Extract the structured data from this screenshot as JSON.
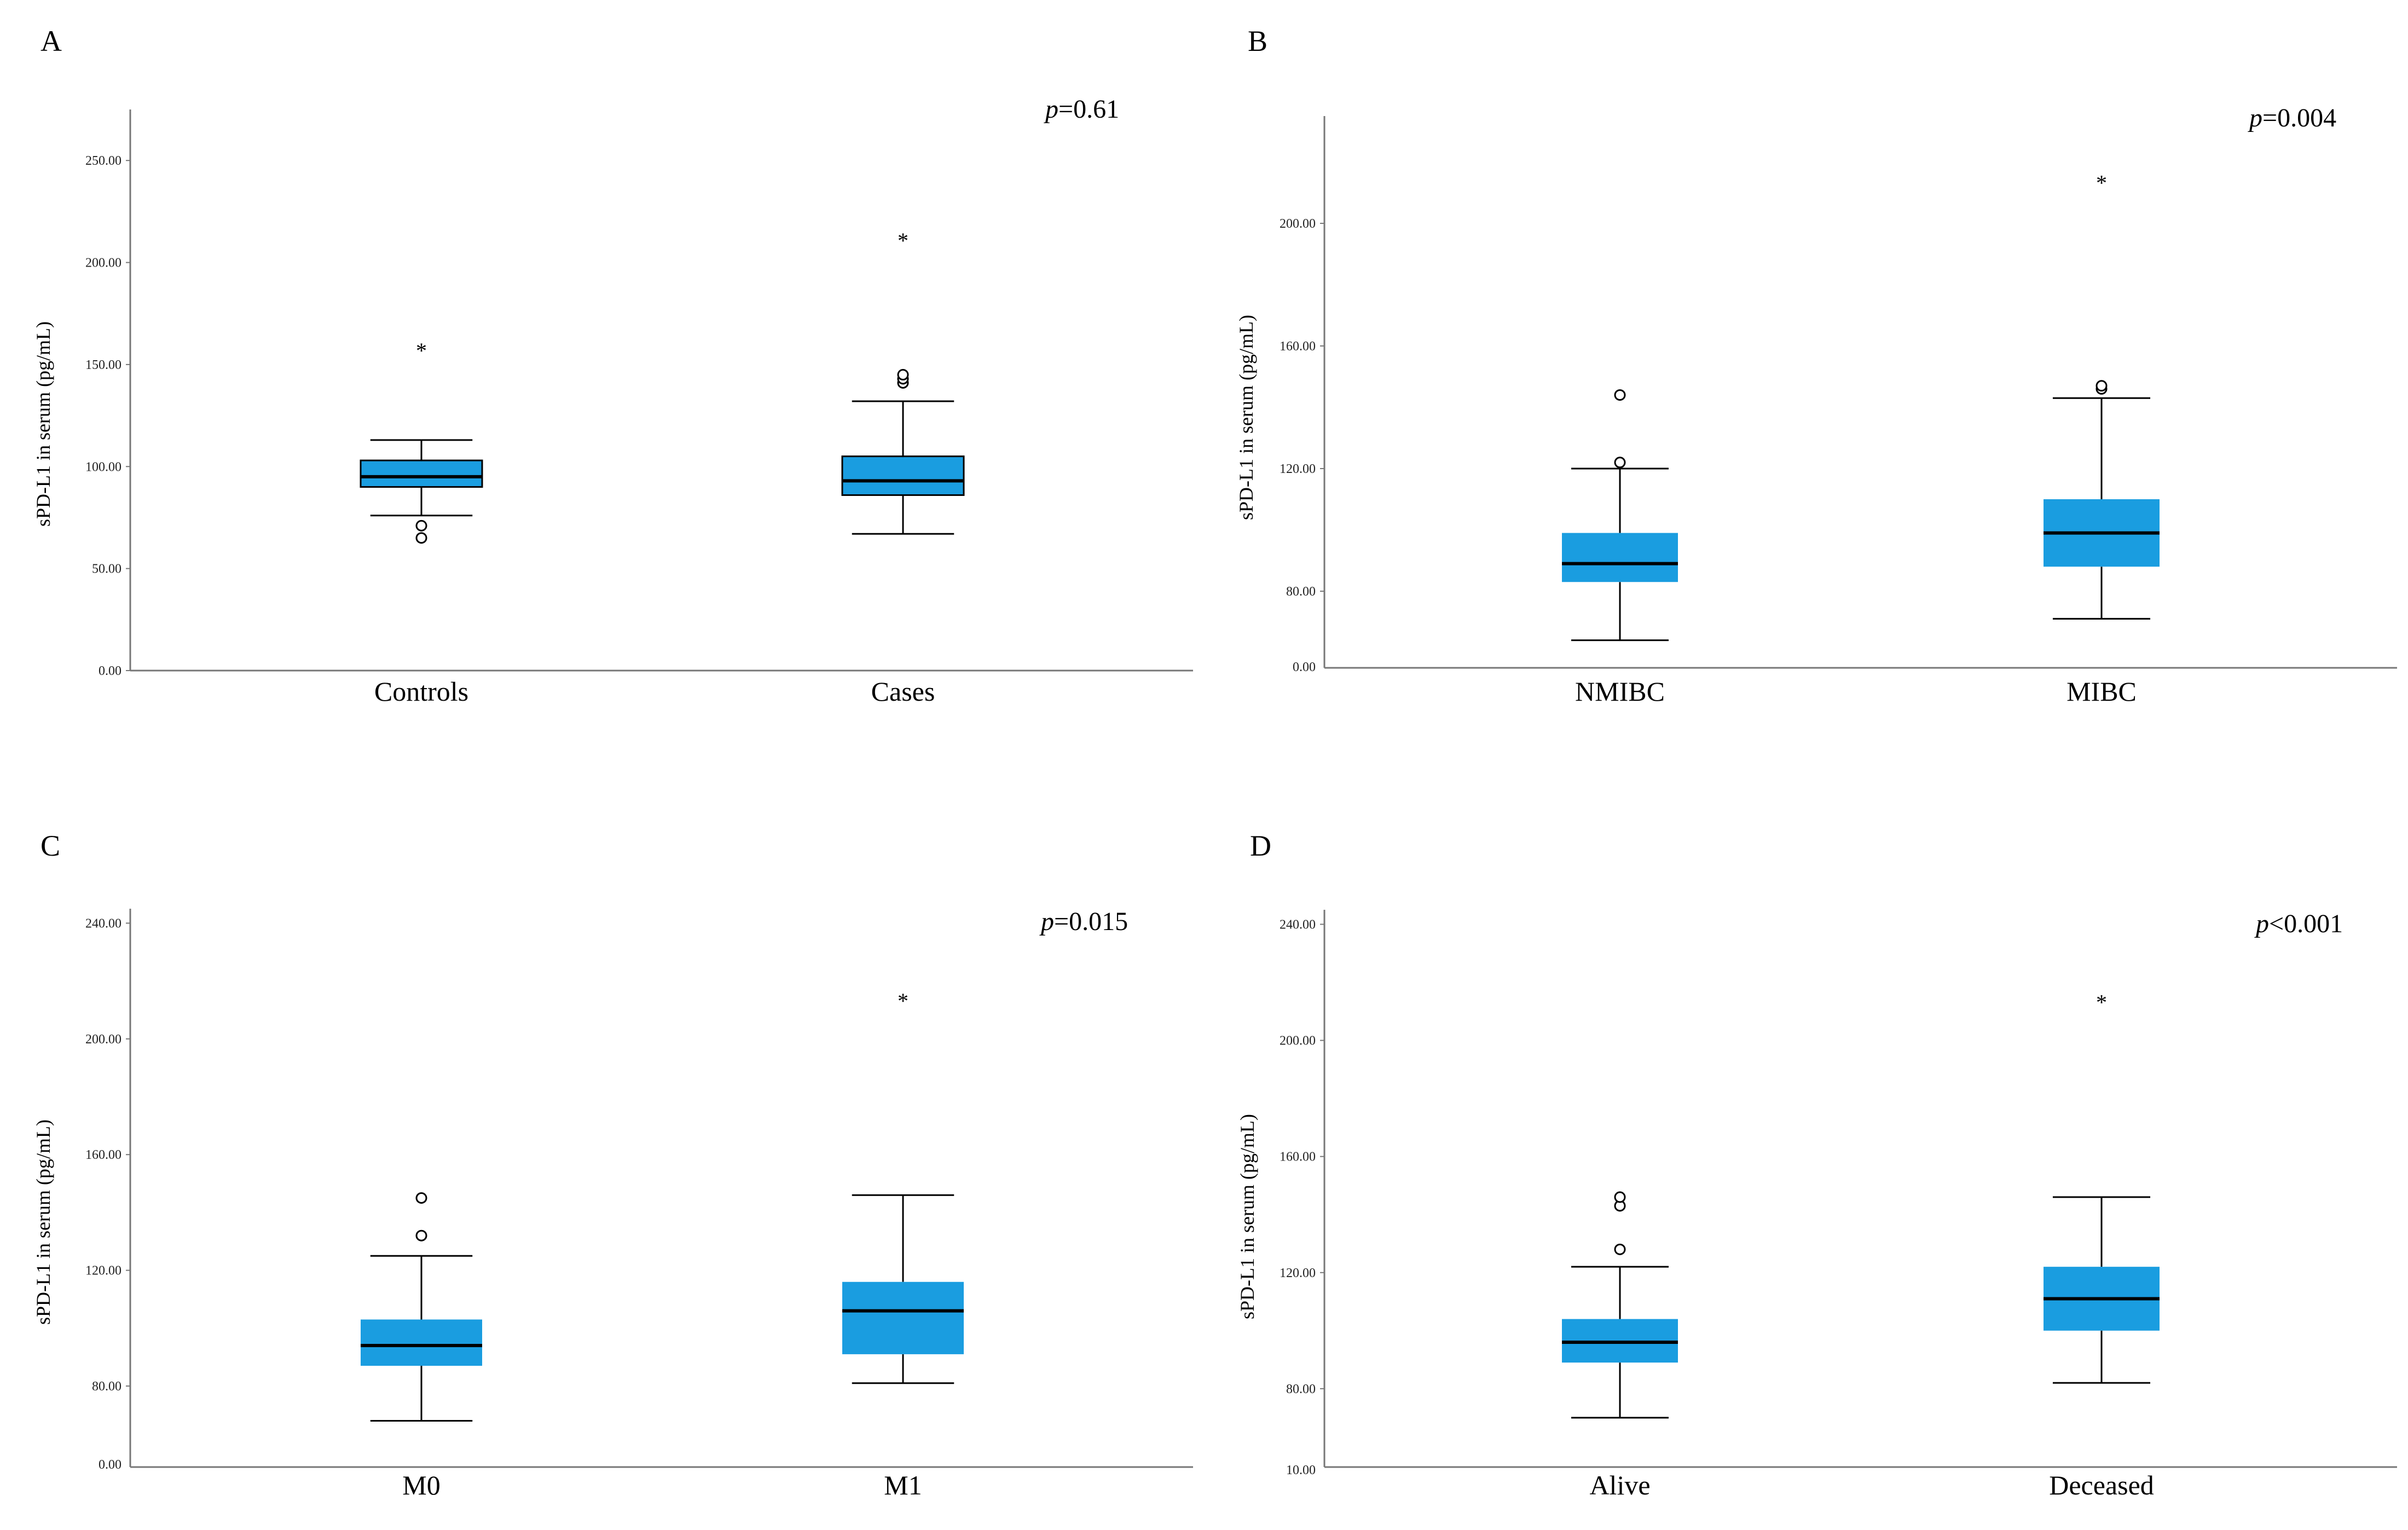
{
  "colors": {
    "box_fill": "#1a9de0",
    "box_edge": "#000000",
    "axis": "#777777"
  },
  "chart_data": [
    {
      "panel": "A",
      "type": "box",
      "p_prefix": "p",
      "p_value": "=0.61",
      "ylabel": "sPD-L1 in serum (pg/mL)",
      "ylim": [
        0,
        275
      ],
      "yticks": [
        0,
        50,
        100,
        150,
        200,
        250
      ],
      "ytick_labels": [
        "0.00",
        "50.00",
        "100.00",
        "150.00",
        "200.00",
        "250.00"
      ],
      "box_edge": true,
      "categories": [
        "Controls",
        "Cases"
      ],
      "boxes": [
        {
          "name": "Controls",
          "whisker_low": 76,
          "q1": 90,
          "median": 95,
          "q3": 103,
          "whisker_high": 113,
          "outliers": [
            71,
            65
          ],
          "extremes": [
            158
          ]
        },
        {
          "name": "Cases",
          "whisker_low": 67,
          "q1": 86,
          "median": 93,
          "q3": 105,
          "whisker_high": 132,
          "outliers": [
            141,
            143,
            145
          ],
          "extremes": [
            212
          ]
        }
      ]
    },
    {
      "panel": "B",
      "type": "box",
      "p_prefix": "p",
      "p_value": "=0.004",
      "ylabel": "sPD-L1 in serum (pg/mL)",
      "ylim": [
        55,
        235
      ],
      "yticks": [
        80,
        120,
        160,
        200
      ],
      "ytick_labels": [
        "80.00",
        "120.00",
        "160.00",
        "200.00"
      ],
      "floor_label": "0.00",
      "box_edge": false,
      "categories": [
        "NMIBC",
        "MIBC"
      ],
      "boxes": [
        {
          "name": "NMIBC",
          "whisker_low": 64,
          "q1": 83,
          "median": 89,
          "q3": 99,
          "whisker_high": 120,
          "outliers": [
            122,
            144
          ],
          "extremes": []
        },
        {
          "name": "MIBC",
          "whisker_low": 71,
          "q1": 88,
          "median": 99,
          "q3": 110,
          "whisker_high": 143,
          "outliers": [
            146,
            147
          ],
          "extremes": [
            214
          ]
        }
      ]
    },
    {
      "panel": "C",
      "type": "box",
      "p_prefix": "p",
      "p_value": "=0.015",
      "ylabel": "sPD-L1 in serum (pg/mL)",
      "ylim": [
        52,
        245
      ],
      "yticks": [
        80,
        120,
        160,
        200,
        240
      ],
      "ytick_labels": [
        "80.00",
        "120.00",
        "160.00",
        "200.00",
        "240.00"
      ],
      "floor_label": "0.00",
      "box_edge": false,
      "categories": [
        "M0",
        "M1"
      ],
      "boxes": [
        {
          "name": "M0",
          "whisker_low": 68,
          "q1": 87,
          "median": 94,
          "q3": 103,
          "whisker_high": 125,
          "outliers": [
            132,
            145
          ],
          "extremes": []
        },
        {
          "name": "M1",
          "whisker_low": 81,
          "q1": 91,
          "median": 106,
          "q3": 116,
          "whisker_high": 146,
          "outliers": [],
          "extremes": [
            214
          ]
        }
      ]
    },
    {
      "panel": "D",
      "type": "box",
      "p_prefix": "p",
      "p_value": "<0.001",
      "ylabel": "sPD-L1 in serum (pg/mL)",
      "ylim": [
        53,
        245
      ],
      "yticks": [
        80,
        120,
        160,
        200,
        240
      ],
      "ytick_labels": [
        "80.00",
        "120.00",
        "160.00",
        "200.00",
        "240.00"
      ],
      "floor_label": "10.00",
      "box_edge": false,
      "categories": [
        "Alive",
        "Deceased"
      ],
      "boxes": [
        {
          "name": "Alive",
          "whisker_low": 70,
          "q1": 89,
          "median": 96,
          "q3": 104,
          "whisker_high": 122,
          "outliers": [
            128,
            143,
            146
          ],
          "extremes": []
        },
        {
          "name": "Deceased",
          "whisker_low": 82,
          "q1": 100,
          "median": 111,
          "q3": 122,
          "whisker_high": 146,
          "outliers": [],
          "extremes": [
            214
          ]
        }
      ]
    }
  ]
}
